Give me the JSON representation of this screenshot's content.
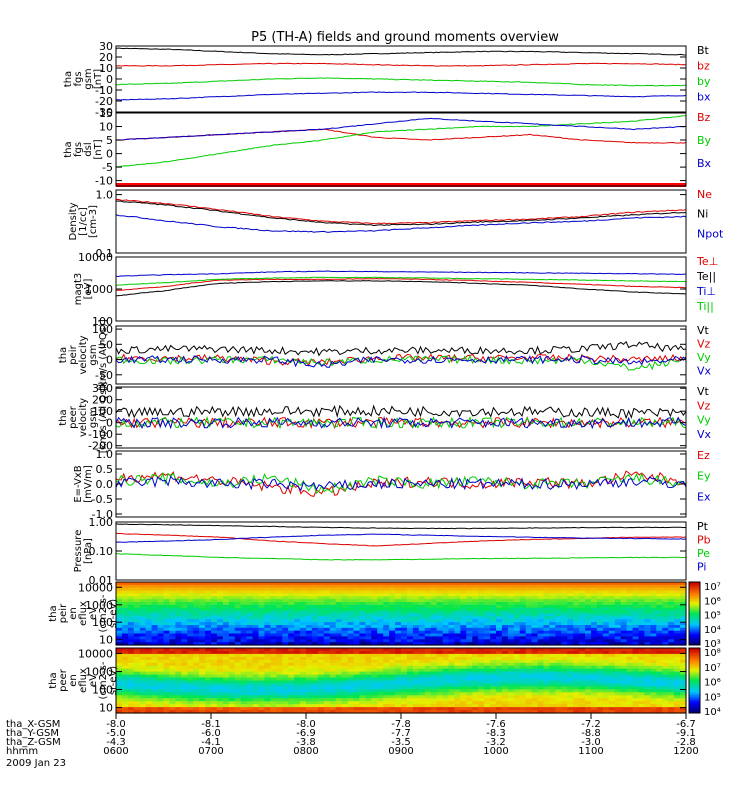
{
  "chart_data": {
    "type": "line",
    "title": "P5 (TH-A) fields and ground moments overview",
    "x_ticks": [
      "0600",
      "0700",
      "0800",
      "0900",
      "1000",
      "1100",
      "1200"
    ],
    "orbit_rows": [
      {
        "label": "tha_X-GSM",
        "values": [
          "-8.0",
          "-8.1",
          "-8.0",
          "-7.8",
          "-7.6",
          "-7.2",
          "-6.7"
        ]
      },
      {
        "label": "tha_Y-GSM",
        "values": [
          "-5.0",
          "-6.0",
          "-6.9",
          "-7.7",
          "-8.3",
          "-8.8",
          "-9.1"
        ]
      },
      {
        "label": "tha_Z-GSM",
        "values": [
          "-4.3",
          "-4.1",
          "-3.8",
          "-3.5",
          "-3.2",
          "-3.0",
          "-2.8"
        ]
      },
      {
        "label": "hhmm",
        "values": []
      }
    ],
    "date_label": "2009 Jan 23",
    "panels": [
      {
        "id": "fgs-gsm",
        "ylabel": [
          "tha",
          "fgs",
          "gsm",
          "[nT]"
        ],
        "ylim": [
          -30,
          30
        ],
        "scale": "linear",
        "ticks": [
          "30",
          "20",
          "10",
          "0",
          "-10",
          "-20",
          "-30"
        ],
        "series": [
          {
            "name": "Bt",
            "color": "#000000",
            "values": [
              28,
              27,
              25,
              23,
              22,
              23,
              24,
              25,
              25,
              24,
              23,
              22
            ]
          },
          {
            "name": "bz",
            "color": "#dd0000",
            "values": [
              12,
              12,
              13,
              14,
              14,
              13,
              12,
              12,
              13,
              14,
              14,
              13
            ]
          },
          {
            "name": "by",
            "color": "#00cc00",
            "values": [
              -5,
              -4,
              -2,
              0,
              1,
              0,
              -1,
              -2,
              -3,
              -5,
              -6,
              -6
            ]
          },
          {
            "name": "bx",
            "color": "#0000cc",
            "values": [
              -19,
              -18,
              -16,
              -14,
              -13,
              -12,
              -12,
              -13,
              -14,
              -15,
              -16,
              -15
            ]
          }
        ]
      },
      {
        "id": "fgs-gse-dsl",
        "ylabel": [
          "tha",
          "fgs",
          "dsl",
          "[nT]"
        ],
        "ylim": [
          -12,
          15
        ],
        "scale": "linear",
        "ticks": [
          "15",
          "10",
          "5",
          "0",
          "-5",
          "-10"
        ],
        "series": [
          {
            "name": "Bz",
            "color": "#dd0000",
            "values": [
              5,
              6,
              7,
              8,
              9,
              6,
              5,
              6,
              7,
              5,
              4,
              4
            ]
          },
          {
            "name": "By",
            "color": "#00cc00",
            "values": [
              -5,
              -3,
              0,
              3,
              5,
              8,
              9,
              10,
              10,
              11,
              12,
              14
            ]
          },
          {
            "name": "Bx",
            "color": "#0000cc",
            "values": [
              5,
              6,
              7,
              8,
              9,
              11,
              13,
              12,
              11,
              10,
              9,
              10
            ]
          }
        ]
      },
      {
        "id": "density",
        "ylabel": [
          "Density",
          "[1/cc]",
          "[cm-3]"
        ],
        "ylim": [
          0.1,
          1.2
        ],
        "scale": "log",
        "ticks": [
          "1.0",
          "0.1"
        ],
        "series": [
          {
            "name": "Ne",
            "color": "#dd0000",
            "values": [
              0.82,
              0.7,
              0.55,
              0.42,
              0.35,
              0.32,
              0.33,
              0.36,
              0.38,
              0.42,
              0.5,
              0.55
            ]
          },
          {
            "name": "Ni",
            "color": "#000000",
            "values": [
              0.78,
              0.66,
              0.52,
              0.4,
              0.33,
              0.3,
              0.31,
              0.34,
              0.36,
              0.4,
              0.45,
              0.5
            ]
          },
          {
            "name": "Npot",
            "color": "#0000cc",
            "values": [
              0.45,
              0.35,
              0.28,
              0.24,
              0.23,
              0.24,
              0.27,
              0.3,
              0.33,
              0.35,
              0.4,
              0.42
            ]
          }
        ]
      },
      {
        "id": "temperature",
        "ylabel": [
          "magt3",
          "[eV]"
        ],
        "ylim": [
          100,
          10000
        ],
        "scale": "log",
        "ticks": [
          "10000",
          "1000",
          "100"
        ],
        "series": [
          {
            "name": "Te⊥",
            "color": "#dd0000",
            "values": [
              900,
              1200,
              1900,
              2000,
              2000,
              2100,
              2000,
              1800,
              1600,
              1400,
              1200,
              1100
            ]
          },
          {
            "name": "Te||",
            "color": "#000000",
            "values": [
              600,
              900,
              1500,
              1700,
              1800,
              1800,
              1700,
              1500,
              1300,
              1000,
              800,
              700
            ]
          },
          {
            "name": "Ti⊥",
            "color": "#0000cc",
            "values": [
              2500,
              2800,
              3000,
              3400,
              3600,
              3500,
              3400,
              3300,
              3200,
              3100,
              3000,
              2900
            ]
          },
          {
            "name": "Ti||",
            "color": "#00cc00",
            "values": [
              1300,
              1600,
              2000,
              2200,
              2300,
              2300,
              2200,
              2100,
              2000,
              1900,
              1800,
              1700
            ]
          }
        ]
      },
      {
        "id": "peir-velocity",
        "ylabel": [
          "tha",
          "peir",
          "velocity",
          "gsm",
          "[km/s (All Qs)]"
        ],
        "ylim": [
          -80,
          110
        ],
        "scale": "linear",
        "ticks": [
          "100",
          "50",
          "0",
          "-50"
        ],
        "series": [
          {
            "name": "Vt",
            "color": "#000000",
            "values": [
              30,
              35,
              35,
              30,
              25,
              30,
              30,
              30,
              30,
              35,
              50,
              30
            ]
          },
          {
            "name": "Vz",
            "color": "#dd0000",
            "values": [
              5,
              5,
              5,
              -5,
              -10,
              5,
              5,
              5,
              5,
              5,
              0,
              5
            ]
          },
          {
            "name": "Vy",
            "color": "#00cc00",
            "values": [
              0,
              -5,
              0,
              0,
              -10,
              0,
              0,
              0,
              -5,
              0,
              -30,
              0
            ]
          },
          {
            "name": "Vx",
            "color": "#0000cc",
            "values": [
              0,
              0,
              0,
              0,
              -20,
              0,
              0,
              0,
              0,
              0,
              -10,
              0
            ]
          }
        ]
      },
      {
        "id": "peer-velocity",
        "ylabel": [
          "tha",
          "peer",
          "velocity",
          "gsm",
          "[km/s (All Qs)]"
        ],
        "ylim": [
          -220,
          310
        ],
        "scale": "linear",
        "ticks": [
          "300",
          "200",
          "100",
          "0",
          "-100",
          "-200"
        ],
        "series": [
          {
            "name": "Vt",
            "color": "#000000",
            "values": [
              80,
              90,
              100,
              100,
              100,
              100,
              100,
              100,
              95,
              90,
              85,
              80
            ]
          },
          {
            "name": "Vz",
            "color": "#dd0000",
            "values": [
              0,
              0,
              0,
              0,
              0,
              0,
              0,
              0,
              0,
              0,
              0,
              0
            ]
          },
          {
            "name": "Vy",
            "color": "#00cc00",
            "values": [
              0,
              0,
              0,
              0,
              0,
              0,
              0,
              0,
              0,
              0,
              0,
              0
            ]
          },
          {
            "name": "Vx",
            "color": "#0000cc",
            "values": [
              0,
              0,
              0,
              0,
              0,
              0,
              0,
              0,
              0,
              0,
              0,
              0
            ]
          }
        ]
      },
      {
        "id": "e-field",
        "ylabel": [
          "E=-VxB",
          "[mV/m]"
        ],
        "ylim": [
          -1.1,
          1.1
        ],
        "scale": "linear",
        "ticks": [
          "1.0",
          "0.5",
          "0.0",
          "-0.5",
          "-1.0"
        ],
        "series": [
          {
            "name": "Ez",
            "color": "#dd0000",
            "values": [
              0.2,
              0.3,
              0.1,
              -0.1,
              -0.3,
              0.0,
              0.1,
              0.0,
              0.1,
              0.0,
              0.3,
              0.1
            ]
          },
          {
            "name": "Ey",
            "color": "#00cc00",
            "values": [
              0.1,
              0.2,
              0.0,
              0.2,
              -0.2,
              0.1,
              0.0,
              0.1,
              0.0,
              0.0,
              0.2,
              0.0
            ]
          },
          {
            "name": "Ex",
            "color": "#0000cc",
            "values": [
              0.0,
              0.1,
              0.0,
              0.0,
              -0.1,
              0.0,
              0.0,
              0.0,
              0.0,
              0.0,
              0.1,
              0.0
            ]
          }
        ]
      },
      {
        "id": "pressure",
        "ylabel": [
          "Pressure",
          "[nPa]"
        ],
        "ylim": [
          0.01,
          1.0
        ],
        "scale": "log",
        "ticks": [
          "1.00",
          "0.10",
          "0.01"
        ],
        "series": [
          {
            "name": "Pt",
            "color": "#000000",
            "values": [
              0.85,
              0.8,
              0.75,
              0.7,
              0.65,
              0.62,
              0.6,
              0.6,
              0.62,
              0.64,
              0.65,
              0.65
            ]
          },
          {
            "name": "Pb",
            "color": "#dd0000",
            "values": [
              0.4,
              0.35,
              0.3,
              0.22,
              0.18,
              0.15,
              0.18,
              0.22,
              0.25,
              0.27,
              0.3,
              0.3
            ]
          },
          {
            "name": "Pe",
            "color": "#00cc00",
            "values": [
              0.08,
              0.07,
              0.06,
              0.055,
              0.05,
              0.05,
              0.052,
              0.055,
              0.056,
              0.058,
              0.06,
              0.06
            ]
          },
          {
            "name": "Pi",
            "color": "#0000cc",
            "values": [
              0.2,
              0.22,
              0.25,
              0.3,
              0.35,
              0.38,
              0.35,
              0.32,
              0.3,
              0.28,
              0.27,
              0.26
            ]
          }
        ]
      },
      {
        "id": "peir-spec",
        "type": "heatmap",
        "ylabel": [
          "tha",
          "peir",
          "en",
          "eflux",
          "eV",
          "(cm2-s-",
          "sr-eV)"
        ],
        "ylim": [
          5,
          20000
        ],
        "scale": "log",
        "ticks": [
          "10000",
          "1000",
          "100",
          "10"
        ],
        "colorbar_ticks": [
          "10⁷",
          "10⁶",
          "10⁵",
          "10⁴",
          "10³"
        ],
        "colorbar_range": [
          3,
          7
        ]
      },
      {
        "id": "peer-spec",
        "type": "heatmap",
        "ylabel": [
          "tha",
          "peer",
          "en",
          "eflux",
          "eV",
          "(cm2-s-",
          "sr-eV)"
        ],
        "ylim": [
          5,
          20000
        ],
        "scale": "log",
        "ticks": [
          "10000",
          "1000",
          "100",
          "10"
        ],
        "colorbar_ticks": [
          "10⁸",
          "10⁷",
          "10⁶",
          "10⁵",
          "10⁴"
        ],
        "colorbar_range": [
          4,
          8
        ]
      }
    ]
  }
}
